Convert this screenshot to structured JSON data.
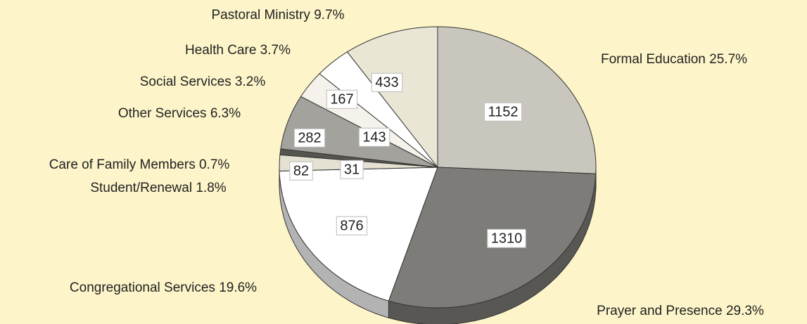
{
  "chart_data": {
    "type": "pie",
    "categories": [
      "Formal Education",
      "Prayer and Presence",
      "Congregational Services",
      "Student/Renewal",
      "Care of Family Members",
      "Other Services",
      "Social Services",
      "Health Care",
      "Pastoral Ministry"
    ],
    "values": [
      1152,
      1310,
      876,
      82,
      31,
      282,
      143,
      167,
      433
    ],
    "shares": [
      25.7,
      29.3,
      19.6,
      1.8,
      0.7,
      6.3,
      3.2,
      3.7,
      9.7
    ],
    "share_labels": [
      "25.7%",
      "29.3%",
      "19.6%",
      "1.8%",
      "0.7%",
      "6.3%",
      "3.2%",
      "3.7%",
      "9.7%"
    ],
    "colors": [
      "#c9c7bd",
      "#7d7c78",
      "#ffffff",
      "#e4e1d2",
      "#55544f",
      "#a3a29c",
      "#f4f2ea",
      "#ffffff",
      "#e9e6d6"
    ]
  }
}
